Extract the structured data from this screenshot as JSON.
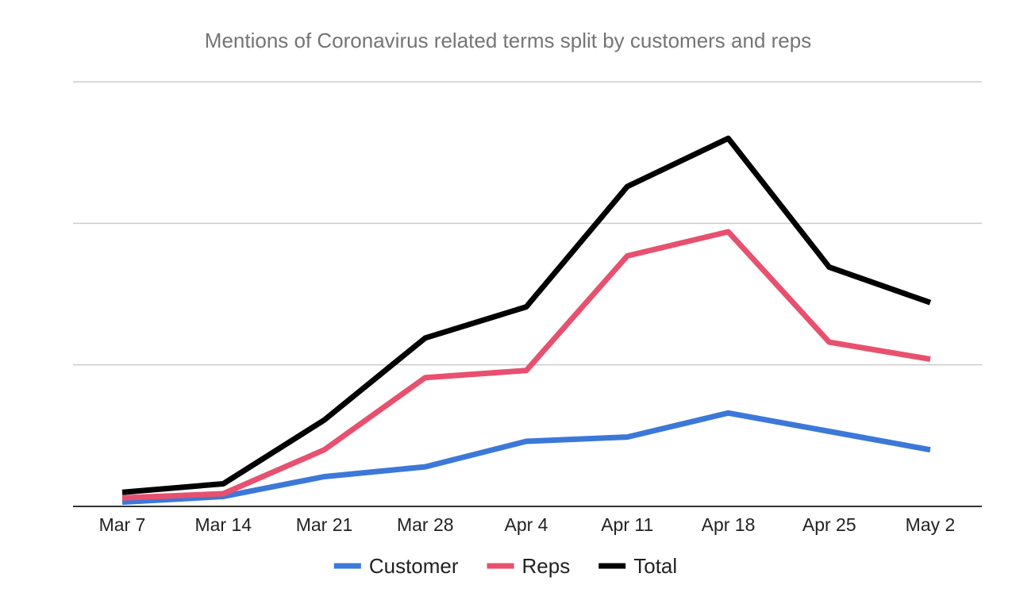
{
  "chart_data": {
    "type": "line",
    "title": "Mentions of Coronavirus related terms split by customers and reps",
    "xlabel": "",
    "ylabel": "",
    "categories": [
      "Mar 7",
      "Mar 14",
      "Mar 21",
      "Mar 28",
      "Apr 4",
      "Apr 11",
      "Apr 18",
      "Apr 25",
      "May 2"
    ],
    "ylim": [
      0,
      300
    ],
    "y_gridlines": [
      100,
      200,
      300
    ],
    "y_tick_labels_shown": false,
    "grid": true,
    "legend_position": "bottom",
    "series": [
      {
        "name": "Customer",
        "color": "#3C78D8",
        "values": [
          3,
          7,
          21,
          28,
          46,
          49,
          66,
          53,
          40
        ]
      },
      {
        "name": "Reps",
        "color": "#E8506F",
        "values": [
          6,
          9,
          40,
          91,
          96,
          177,
          194,
          116,
          104
        ]
      },
      {
        "name": "Total",
        "color": "#000000",
        "values": [
          10,
          16,
          61,
          119,
          141,
          226,
          260,
          169,
          144
        ]
      }
    ]
  }
}
